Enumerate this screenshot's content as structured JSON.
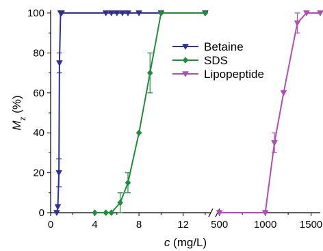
{
  "chart_data": {
    "type": "line",
    "xlabel": {
      "italic": "c",
      "rest": " (mg/L)"
    },
    "ylabel": {
      "italic": "M",
      "sub": "z",
      "rest": " (%)"
    },
    "ylim": [
      0,
      100
    ],
    "yticks": [
      "0",
      "20",
      "40",
      "60",
      "80",
      "100"
    ],
    "xaxis_segments": [
      {
        "xlim": [
          0,
          14.5
        ],
        "ticks": [
          0,
          4,
          8,
          12
        ],
        "tick_labels": [
          "0",
          "4",
          "8",
          "12"
        ]
      },
      {
        "xlim": [
          480,
          1600
        ],
        "ticks": [
          500,
          1000,
          1500
        ],
        "tick_labels": [
          "500",
          "1000",
          "1500"
        ]
      }
    ],
    "axis_break": true,
    "legend": {
      "position": "top-right"
    },
    "series": [
      {
        "name": "Betaine",
        "color": "#2f2f99",
        "marker": "triangle-down",
        "segment": 0,
        "x": [
          0.55,
          0.65,
          0.75,
          0.8,
          0.9,
          1.0,
          5.0,
          5.5,
          6.0,
          6.5,
          7.0,
          8.0,
          10.0,
          14.0
        ],
        "y": [
          0,
          3,
          20,
          75,
          100,
          100,
          100,
          100,
          100,
          100,
          100,
          100,
          100,
          100
        ],
        "errors": [
          {
            "x": 0.75,
            "y": 20,
            "err": 7
          },
          {
            "x": 0.8,
            "y": 75,
            "err": 5
          }
        ]
      },
      {
        "name": "SDS",
        "color": "#1e8c3a",
        "marker": "diamond",
        "segment": 0,
        "x": [
          4.0,
          5.0,
          5.5,
          6.3,
          7.0,
          8.0,
          9.0,
          10.0,
          14.0
        ],
        "y": [
          0,
          0,
          0,
          5,
          15,
          40,
          70,
          100,
          100
        ],
        "errors": [
          {
            "x": 6.3,
            "y": 5,
            "err": 5
          },
          {
            "x": 7.0,
            "y": 15,
            "err": 5
          },
          {
            "x": 9.0,
            "y": 70,
            "err": 10
          }
        ]
      },
      {
        "name": "Lipopeptide",
        "color": "#b04db4",
        "marker": "triangle-down",
        "segment": 1,
        "x": [
          500,
          1000,
          1100,
          1200,
          1350,
          1450,
          1600
        ],
        "y": [
          0,
          0,
          35,
          60,
          95,
          100,
          100
        ],
        "errors": [
          {
            "x": 1100,
            "y": 35,
            "err": 5
          },
          {
            "x": 1350,
            "y": 95,
            "err": 5
          }
        ]
      }
    ]
  }
}
